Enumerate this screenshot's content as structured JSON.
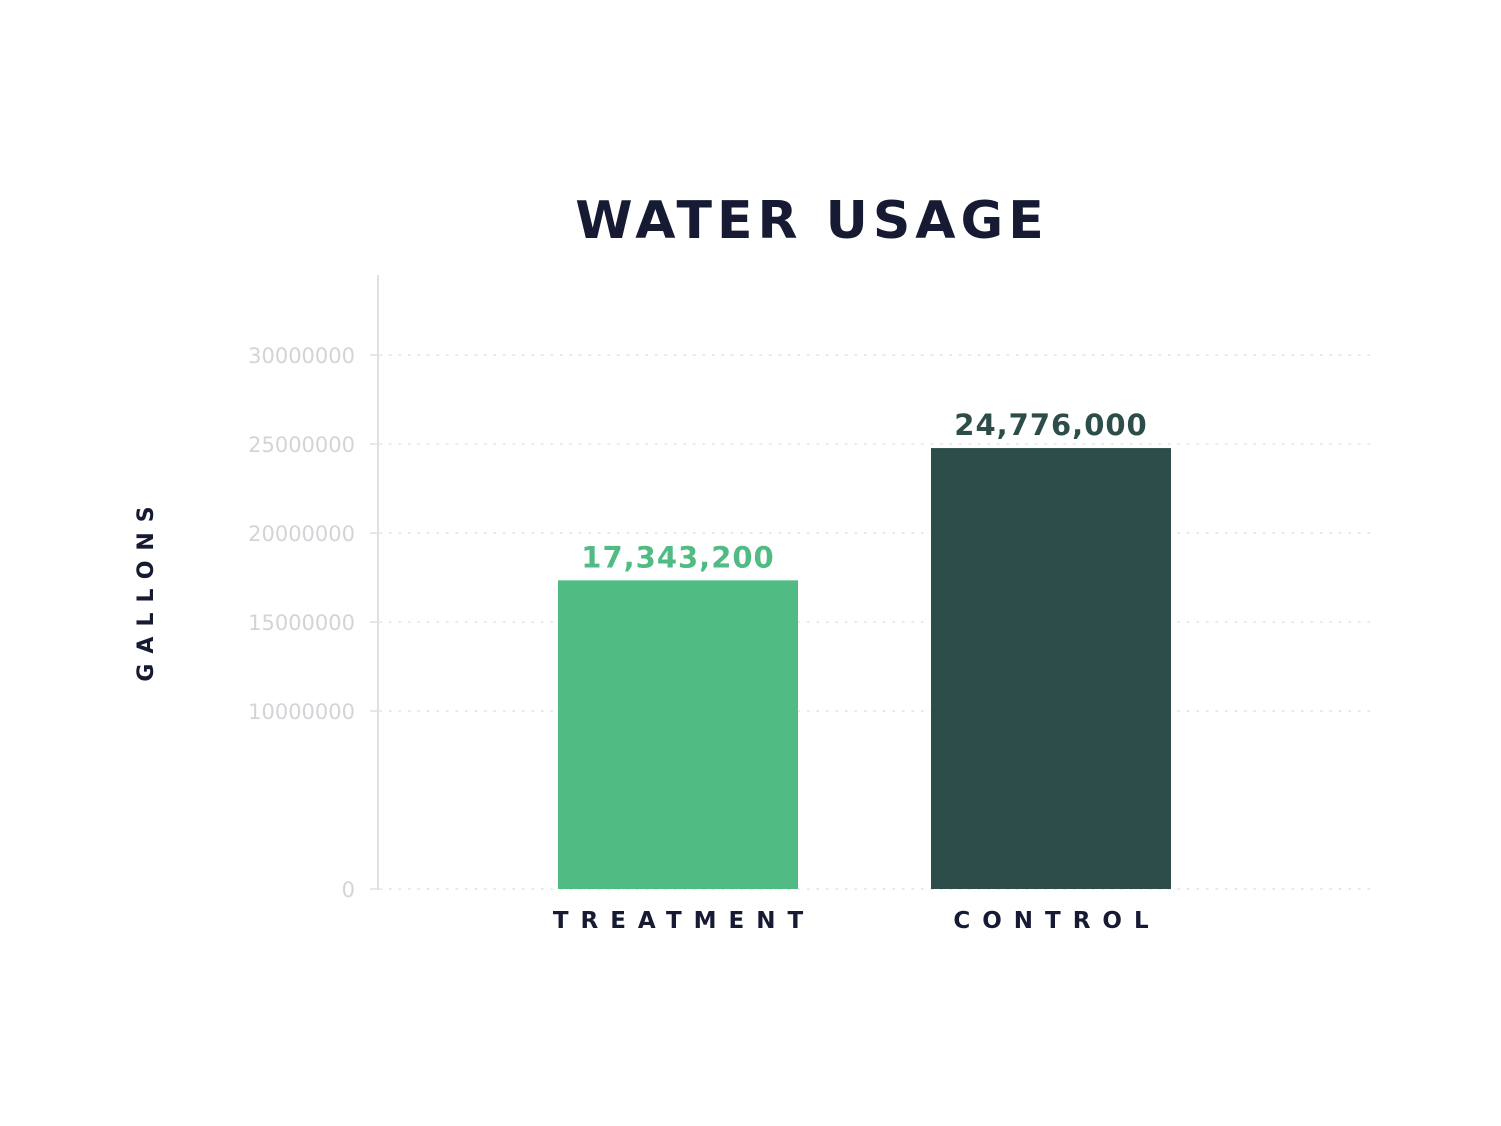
{
  "chart_data": {
    "type": "bar",
    "title": "WATER USAGE",
    "xlabel": "",
    "ylabel": "GALLONS",
    "categories": [
      "TREATMENT",
      "CONTROL"
    ],
    "values": [
      17343200,
      24776000
    ],
    "value_labels": [
      "17,343,200",
      "24,776,000"
    ],
    "yticks": [
      "0",
      "10000000",
      "15000000",
      "20000000",
      "25000000",
      "30000000"
    ],
    "ytick_values": [
      0,
      10000000,
      15000000,
      20000000,
      25000000,
      30000000
    ],
    "ylim": [
      0,
      34500000
    ],
    "grid": true,
    "colors": {
      "bars": [
        "#50bb82",
        "#2d4d4b"
      ],
      "title": "#161a33",
      "axis_label": "#161a33",
      "tick_label": "#d4d4d8",
      "grid": "#e2e2e2",
      "axis_line": "#e0e0e0"
    }
  }
}
